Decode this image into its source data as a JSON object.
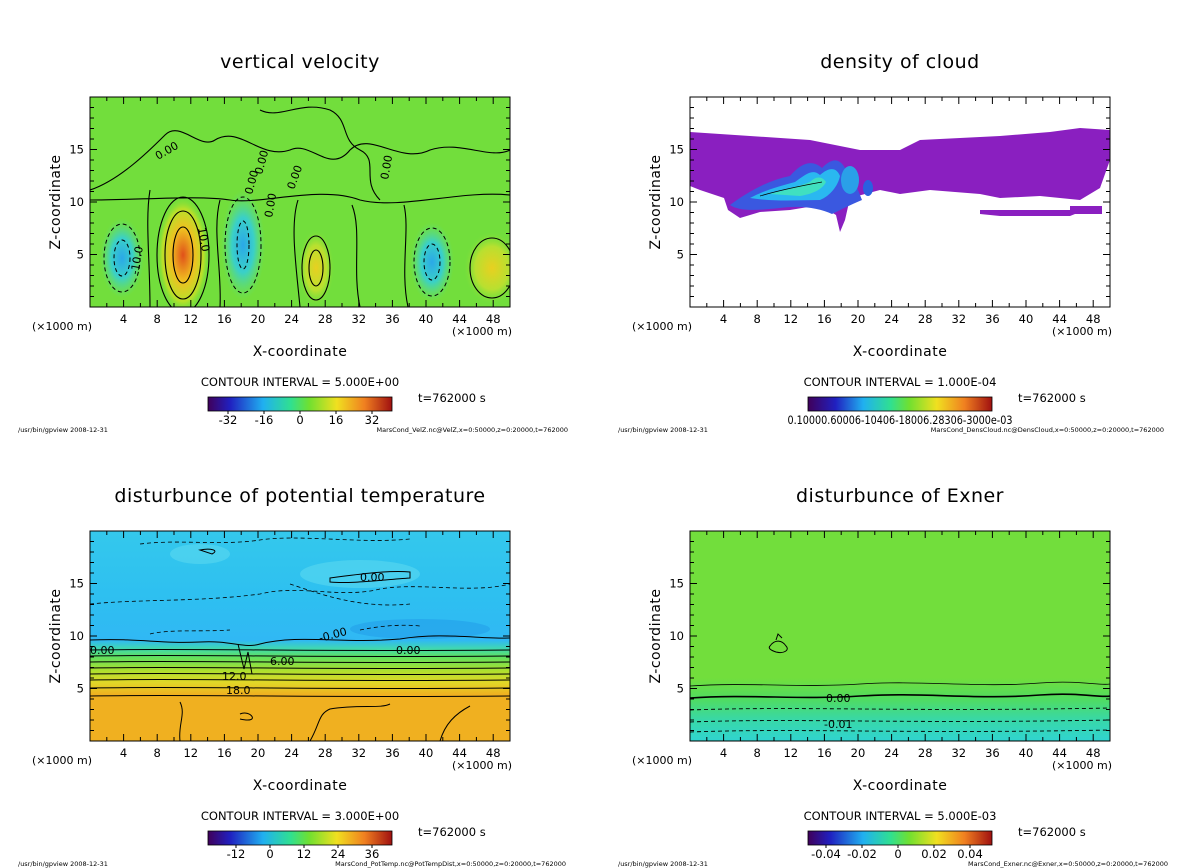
{
  "chart_data": [
    {
      "type": "heatmap",
      "title": "vertical velocity",
      "xlabel": "X-coordinate",
      "ylabel": "Z-coordinate",
      "x_unit_left": "(×1000 m)",
      "x_unit_right": "(×1000 m)",
      "xlim": [
        0,
        50
      ],
      "ylim": [
        0,
        20
      ],
      "x_ticks": [
        "4",
        "8",
        "12",
        "16",
        "20",
        "24",
        "28",
        "32",
        "36",
        "40",
        "44",
        "48"
      ],
      "y_ticks": [
        "5",
        "10",
        "15"
      ],
      "contour_interval": "CONTOUR INTERVAL = 5.000E+00",
      "time": "t=762000 s",
      "colorbar_ticks": [
        "-32",
        "-16",
        "0",
        "16",
        "32"
      ],
      "contour_labels": [
        "0.00",
        "0.00",
        "0.00",
        "0.00",
        "0.00",
        "0.00",
        "-10.0",
        "10.0"
      ],
      "footer_left": "/usr/bin/gpview  2008-12-31",
      "footer_right": "MarsCond_VelZ.nc@VelZ,x=0:50000,z=0:20000,t=762000"
    },
    {
      "type": "heatmap",
      "title": "density of cloud",
      "xlabel": "X-coordinate",
      "ylabel": "Z-coordinate",
      "x_unit_left": "(×1000 m)",
      "x_unit_right": "(×1000 m)",
      "xlim": [
        0,
        50
      ],
      "ylim": [
        0,
        20
      ],
      "x_ticks": [
        "4",
        "8",
        "12",
        "16",
        "20",
        "24",
        "28",
        "32",
        "36",
        "40",
        "44",
        "48"
      ],
      "y_ticks": [
        "5",
        "10",
        "15"
      ],
      "contour_interval": "CONTOUR INTERVAL = 1.000E-04",
      "time": "t=762000 s",
      "colorbar_ticks": [
        "0.10000.60006-10406-18006.28306-3000e-03"
      ],
      "footer_left": "/usr/bin/gpview  2008-12-31",
      "footer_right": "MarsCond_DensCloud.nc@DensCloud,x=0:50000,z=0:20000,t=762000"
    },
    {
      "type": "heatmap",
      "title": "disturbunce of potential temperature",
      "xlabel": "X-coordinate",
      "ylabel": "Z-coordinate",
      "x_unit_left": "(×1000 m)",
      "x_unit_right": "(×1000 m)",
      "xlim": [
        0,
        50
      ],
      "ylim": [
        0,
        20
      ],
      "x_ticks": [
        "4",
        "8",
        "12",
        "16",
        "20",
        "24",
        "28",
        "32",
        "36",
        "40",
        "44",
        "48"
      ],
      "y_ticks": [
        "5",
        "10",
        "15"
      ],
      "contour_interval": "CONTOUR INTERVAL = 3.000E+00",
      "time": "t=762000 s",
      "colorbar_ticks": [
        "-12",
        "0",
        "12",
        "24",
        "36"
      ],
      "contour_labels": [
        "0.00",
        "-0.00",
        "0.00",
        "0.00",
        "6.00",
        "12.0",
        "18.0"
      ],
      "footer_left": "/usr/bin/gpview  2008-12-31",
      "footer_right": "MarsCond_PotTemp.nc@PotTempDist,x=0:50000,z=0:20000,t=762000"
    },
    {
      "type": "heatmap",
      "title": "disturbunce of Exner",
      "xlabel": "X-coordinate",
      "ylabel": "Z-coordinate",
      "x_unit_left": "(×1000 m)",
      "x_unit_right": "(×1000 m)",
      "xlim": [
        0,
        50
      ],
      "ylim": [
        0,
        20
      ],
      "x_ticks": [
        "4",
        "8",
        "12",
        "16",
        "20",
        "24",
        "28",
        "32",
        "36",
        "40",
        "44",
        "48"
      ],
      "y_ticks": [
        "5",
        "10",
        "15"
      ],
      "contour_interval": "CONTOUR INTERVAL = 5.000E-03",
      "time": "t=762000 s",
      "colorbar_ticks": [
        "-0.04",
        "-0.02",
        "0",
        "0.02",
        "0.04"
      ],
      "contour_labels": [
        "0.00",
        "-0.01"
      ],
      "footer_left": "/usr/bin/gpview  2008-12-31",
      "footer_right": "MarsCond_Exner.nc@Exner,x=0:50000,z=0:20000,t=762000"
    }
  ]
}
